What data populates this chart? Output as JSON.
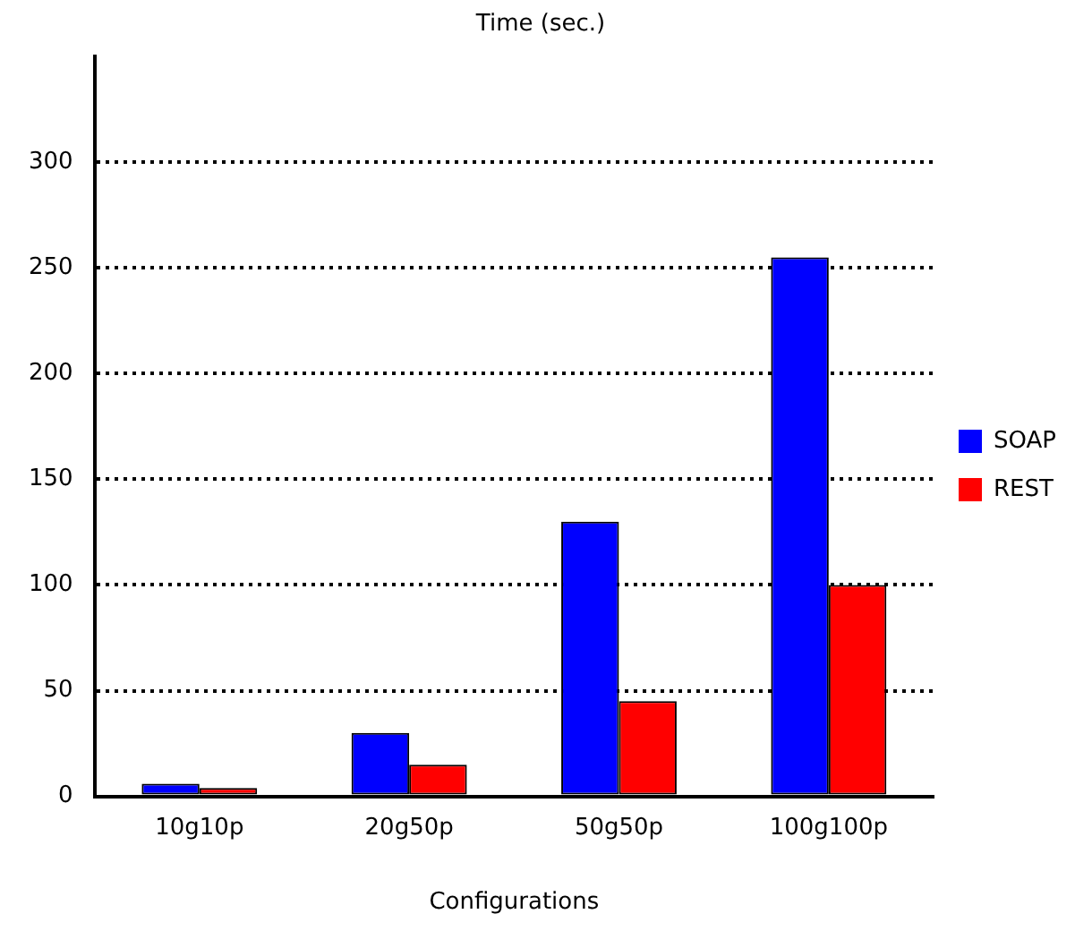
{
  "chart_data": {
    "type": "bar",
    "title": "Time (sec.)",
    "xlabel": "Configurations",
    "categories": [
      "10g10p",
      "20g50p",
      "50g50p",
      "100g100p"
    ],
    "series": [
      {
        "name": "SOAP",
        "color": "#0000ff",
        "values": [
          6,
          30,
          130,
          255
        ]
      },
      {
        "name": "REST",
        "color": "#ff0000",
        "values": [
          4,
          15,
          45,
          100
        ]
      }
    ],
    "ylim": [
      0,
      350
    ],
    "yticks": [
      0,
      50,
      100,
      150,
      200,
      250,
      300
    ],
    "grid": "y",
    "legend": "right"
  }
}
